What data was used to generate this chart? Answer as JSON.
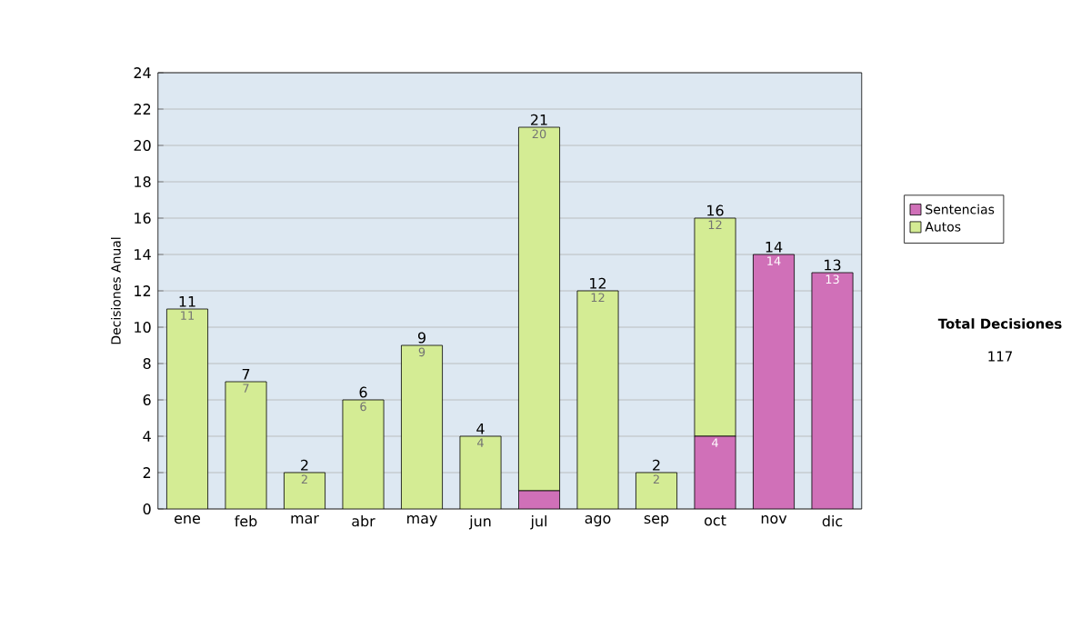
{
  "chart_data": {
    "type": "bar",
    "stacked": true,
    "ylabel": "Decisiones Anual",
    "categories": [
      "ene",
      "feb",
      "mar",
      "abr",
      "may",
      "jun",
      "jul",
      "ago",
      "sep",
      "oct",
      "nov",
      "dic"
    ],
    "series": [
      {
        "name": "Sentencias",
        "color": "#d070b8",
        "values": [
          0,
          0,
          0,
          0,
          0,
          0,
          1,
          0,
          0,
          4,
          14,
          13
        ],
        "value_labels": [
          null,
          null,
          null,
          null,
          null,
          null,
          null,
          null,
          null,
          "4",
          "14",
          "13"
        ]
      },
      {
        "name": "Autos",
        "color": "#d4ec94",
        "values": [
          11,
          7,
          2,
          6,
          9,
          4,
          20,
          12,
          2,
          12,
          0,
          0
        ],
        "value_labels": [
          "11",
          "7",
          "2",
          "6",
          "9",
          "4",
          "20",
          "12",
          "2",
          "12",
          null,
          null
        ]
      }
    ],
    "totals": [
      "11",
      "7",
      "2",
      "6",
      "9",
      "4",
      "21",
      "12",
      "2",
      "16",
      "14",
      "13"
    ],
    "ylim": [
      0,
      24
    ],
    "yticks": [
      0,
      2,
      4,
      6,
      8,
      10,
      12,
      14,
      16,
      18,
      20,
      22,
      24
    ],
    "grid": "y",
    "legend": "right",
    "annotations": [
      "Total Decisiones",
      "117"
    ]
  }
}
